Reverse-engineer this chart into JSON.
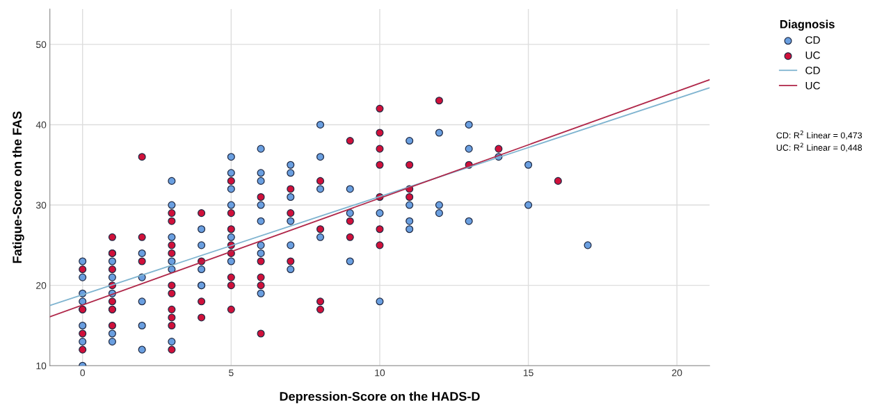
{
  "chart_data": {
    "type": "scatter",
    "xlabel": "Depression-Score on the HADS-D",
    "ylabel": "Fatigue-Score on the FAS",
    "legend_title": "Diagnosis",
    "xlim": [
      -1.1,
      21.1
    ],
    "xticks": [
      0,
      5,
      10,
      15,
      20
    ],
    "ylim": [
      10,
      54.4
    ],
    "yticks": [
      10,
      20,
      30,
      40,
      50
    ],
    "grid": true,
    "legend": "top right",
    "series": [
      {
        "name": "CD",
        "color": "#6a9fe0",
        "marker": "circle",
        "x": [
          0,
          0,
          0,
          0,
          0,
          0,
          0,
          0,
          1,
          1,
          1,
          1,
          1,
          1,
          2,
          2,
          2,
          2,
          2,
          3,
          3,
          3,
          3,
          3,
          3,
          4,
          4,
          4,
          4,
          4,
          5,
          5,
          5,
          5,
          5,
          5,
          6,
          6,
          6,
          6,
          6,
          6,
          6,
          6,
          7,
          7,
          7,
          7,
          7,
          7,
          8,
          8,
          8,
          8,
          9,
          9,
          9,
          10,
          10,
          11,
          11,
          11,
          11,
          12,
          12,
          12,
          13,
          13,
          13,
          14,
          15,
          15,
          17
        ],
        "values": [
          23,
          21,
          19,
          18,
          15,
          13,
          10,
          17,
          24,
          23,
          21,
          19,
          14,
          13,
          24,
          21,
          18,
          15,
          12,
          33,
          30,
          26,
          23,
          22,
          13,
          27,
          25,
          22,
          20,
          20,
          36,
          34,
          32,
          30,
          26,
          23,
          37,
          34,
          33,
          30,
          28,
          25,
          24,
          19,
          35,
          34,
          31,
          28,
          25,
          22,
          40,
          36,
          32,
          26,
          32,
          29,
          23,
          29,
          18,
          38,
          30,
          28,
          27,
          39,
          30,
          29,
          40,
          37,
          28,
          36,
          35,
          30,
          25
        ]
      },
      {
        "name": "UC",
        "color": "#d0103a",
        "marker": "circle",
        "x": [
          0,
          0,
          0,
          0,
          1,
          1,
          1,
          1,
          1,
          1,
          1,
          1,
          2,
          2,
          2,
          3,
          3,
          3,
          3,
          3,
          3,
          3,
          3,
          3,
          3,
          4,
          4,
          4,
          4,
          5,
          5,
          5,
          5,
          5,
          5,
          5,
          5,
          6,
          6,
          6,
          6,
          6,
          7,
          7,
          7,
          8,
          8,
          8,
          8,
          9,
          9,
          9,
          10,
          10,
          10,
          10,
          10,
          10,
          10,
          11,
          11,
          11,
          12,
          13,
          14,
          16
        ],
        "values": [
          22,
          17,
          14,
          12,
          26,
          24,
          22,
          20,
          18,
          17,
          15,
          17,
          36,
          26,
          23,
          29,
          28,
          25,
          24,
          20,
          19,
          17,
          16,
          15,
          12,
          29,
          23,
          18,
          16,
          33,
          29,
          27,
          25,
          24,
          21,
          20,
          17,
          31,
          23,
          21,
          20,
          14,
          32,
          29,
          23,
          33,
          27,
          18,
          17,
          38,
          28,
          26,
          42,
          39,
          37,
          35,
          31,
          27,
          25,
          35,
          32,
          31,
          43,
          35,
          37,
          33
        ]
      },
      {
        "name": "CD",
        "type": "line",
        "marker": "none",
        "color": "#7fb4d0",
        "x": [
          -1.1,
          21.1
        ],
        "values": [
          17.5,
          44.6
        ]
      },
      {
        "name": "UC",
        "type": "line",
        "marker": "none",
        "color": "#b0284a",
        "x": [
          -1.1,
          21.1
        ],
        "values": [
          16.1,
          45.6
        ]
      }
    ],
    "annotations": [
      "CD: R$^{2}$ Linear = 0,473",
      "UC: R$^{2}$ Linear = 0,448"
    ]
  }
}
